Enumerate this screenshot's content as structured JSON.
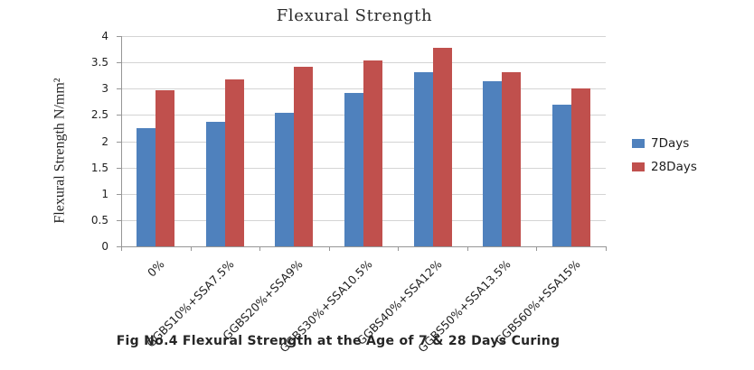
{
  "title": "Flexural Strength",
  "caption": "Fig No.4 Flexural Strength at the Age of 7 & 28 Days Curing",
  "chart_data": {
    "type": "bar",
    "title": "Flexural Strength",
    "ylabel": "Flexural Strength N/mm²",
    "xlabel": "",
    "ylim": [
      0,
      4
    ],
    "ytick_step": 0.5,
    "yticks": [
      "4",
      "3.5",
      "3",
      "2.5",
      "2",
      "1.5",
      "1",
      "0.5",
      "0"
    ],
    "grid": true,
    "legend_position": "right",
    "categories": [
      "0%",
      "GGBS10%+SSA7.5%",
      "GGBS20%+SSA9%",
      "GGBS30%+SSA10.5%",
      "GGBS40%+SSA12%",
      "GGBS50%+SSA13.5%",
      "GGBS60%+SSA15%"
    ],
    "series": [
      {
        "name": "7Days",
        "color": "#4f81bd",
        "values": [
          2.25,
          2.37,
          2.54,
          2.91,
          3.32,
          3.15,
          2.69
        ]
      },
      {
        "name": "28Days",
        "color": "#c0504d",
        "values": [
          2.97,
          3.17,
          3.41,
          3.54,
          3.77,
          3.32,
          3.01
        ]
      }
    ]
  },
  "colors": {
    "grid": "#d4d4d4",
    "axis": "#969696",
    "text": "#1f1f1f",
    "background": "#ffffff"
  }
}
